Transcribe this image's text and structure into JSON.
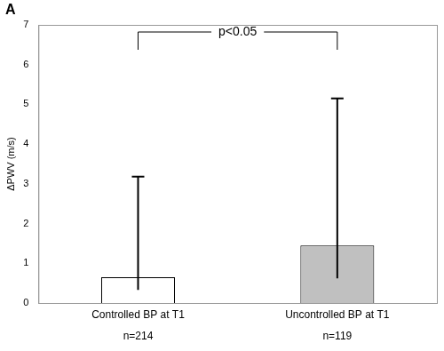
{
  "chart_data": {
    "type": "bar",
    "panel_label": "A",
    "y_label": "ΔPWV (m/s)",
    "categories": [
      "Controlled BP at T1",
      "Uncontrolled BP at T1"
    ],
    "category_notes": [
      "n=214",
      "n=119"
    ],
    "values": [
      0.65,
      1.45
    ],
    "error_lower": [
      0.33,
      0.62
    ],
    "error_upper": [
      3.18,
      5.15
    ],
    "colors": [
      "#ffffff",
      "#c0c0c0"
    ],
    "annotations": [
      "p<0.05"
    ],
    "ylim": [
      0,
      7
    ],
    "yticks": [
      0,
      1,
      2,
      3,
      4,
      5,
      6,
      7
    ],
    "grid": false
  }
}
